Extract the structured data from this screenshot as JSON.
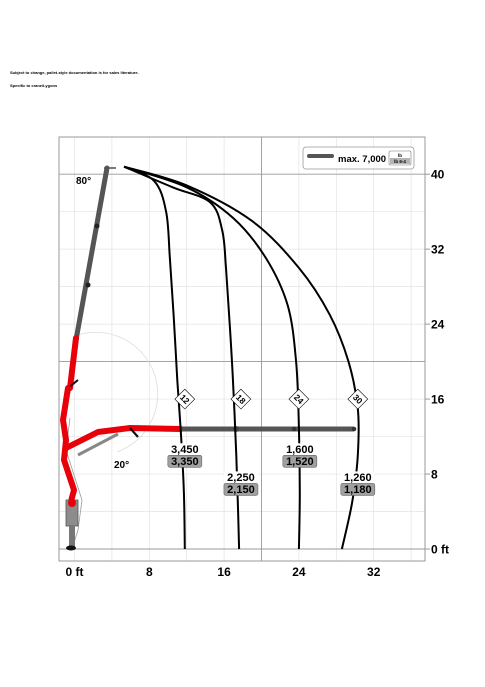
{
  "notes": {
    "line1": "Subject to change, pallet-style documentation is for sales literature.",
    "line2": "Specific to crane/Lygons"
  },
  "chart_data": {
    "type": "line",
    "title": "",
    "xlabel": "",
    "ylabel": "",
    "xlim": [
      -1,
      37
    ],
    "ylim": [
      -0.5,
      44
    ],
    "x_ticks": [
      0,
      8,
      16,
      24,
      32
    ],
    "x_tick_labels": [
      "0 ft",
      "8",
      "16",
      "24",
      "32"
    ],
    "y_ticks": [
      0,
      8,
      16,
      24,
      32,
      40
    ],
    "y_tick_labels": [
      "0 ft",
      "8",
      "16",
      "24",
      "32",
      "40"
    ],
    "grid": true,
    "legend": {
      "position": "top-right",
      "label": "max. 7,000",
      "unit_top": "lb",
      "unit_bottom": "lb 6-4"
    },
    "boom_angles": [
      "80°",
      "20°"
    ],
    "series": [
      {
        "label": "12",
        "points": [
          [
            5.3,
            40.8
          ],
          [
            8.5,
            39.3
          ],
          [
            9.8,
            36
          ],
          [
            10.2,
            31
          ],
          [
            10.6,
            25
          ],
          [
            11.0,
            18
          ],
          [
            11.4,
            12
          ],
          [
            11.7,
            6
          ],
          [
            11.8,
            0
          ]
        ]
      },
      {
        "label": "18",
        "points": [
          [
            5.3,
            40.8
          ],
          [
            10.5,
            38.6
          ],
          [
            14.5,
            37
          ],
          [
            15.8,
            34
          ],
          [
            16.2,
            30
          ],
          [
            16.6,
            24
          ],
          [
            17.0,
            17
          ],
          [
            17.3,
            10
          ],
          [
            17.5,
            4
          ],
          [
            17.6,
            0
          ]
        ]
      },
      {
        "label": "24",
        "points": [
          [
            5.3,
            40.8
          ],
          [
            12.0,
            38.6
          ],
          [
            17.0,
            35.3
          ],
          [
            20.5,
            31
          ],
          [
            22.8,
            26
          ],
          [
            23.7,
            20
          ],
          [
            24.0,
            13
          ],
          [
            24.1,
            6
          ],
          [
            24.0,
            0
          ]
        ]
      },
      {
        "label": "30",
        "points": [
          [
            5.3,
            40.8
          ],
          [
            12.0,
            38.8
          ],
          [
            19.0,
            35
          ],
          [
            24.0,
            30
          ],
          [
            27.3,
            25
          ],
          [
            29.3,
            20
          ],
          [
            30.3,
            15
          ],
          [
            30.3,
            10
          ],
          [
            29.7,
            5
          ],
          [
            28.6,
            0
          ]
        ]
      }
    ],
    "load_boxes": [
      {
        "values": [
          "3,450",
          "3,350"
        ],
        "x": 11.8,
        "y": 10.0
      },
      {
        "values": [
          "2,250",
          "2,150"
        ],
        "x": 17.8,
        "y": 7.0
      },
      {
        "values": [
          "1,600",
          "1,520"
        ],
        "x": 24.1,
        "y": 10.0
      },
      {
        "values": [
          "1,260",
          "1,180"
        ],
        "x": 30.3,
        "y": 7.0
      }
    ]
  }
}
